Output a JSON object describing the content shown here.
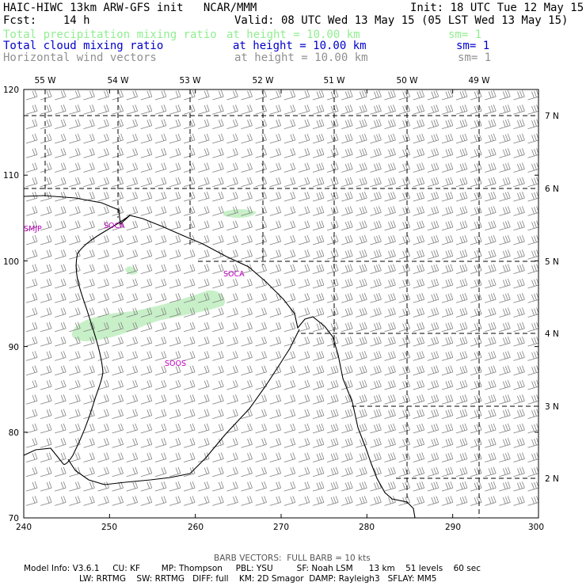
{
  "header": {
    "title_left": "HAIC-HIWC 13km ARW-GFS init   NCAR/MMM",
    "init": "Init: 18 UTC Tue 12 May 15",
    "fcst": "Fcst:    14 h",
    "valid": "Valid: 08 UTC Wed 13 May 15 (05 LST Wed 13 May 15)"
  },
  "fields": [
    {
      "name": "Total precipitation mixing ratio",
      "height": "at height = 10.00 km",
      "sm": "sm= 1",
      "color": "#90ee90"
    },
    {
      "name": "Total cloud mixing ratio",
      "height": "at height = 10.00 km",
      "sm": "sm= 1",
      "color": "#0000cd"
    },
    {
      "name": "Horizontal wind vectors",
      "height": "at height = 10.00 km",
      "sm": "sm= 1",
      "color": "#909090"
    }
  ],
  "map": {
    "top_labels": [
      "55 W",
      "54 W",
      "53 W",
      "52 W",
      "51 W",
      "50 W",
      "49 W"
    ],
    "right_labels": [
      "7 N",
      "6 N",
      "5 N",
      "4 N",
      "3 N",
      "2 N"
    ],
    "left_ticks": [
      "120",
      "110",
      "100",
      "90",
      "80",
      "70"
    ],
    "bottom_ticks": [
      "240",
      "250",
      "260",
      "270",
      "280",
      "290",
      "300"
    ],
    "stations": [
      "SMJP",
      "SOCA",
      "SOCA",
      "SOOS"
    ],
    "precip_color": "#c8f0c8",
    "barb_color": "#808080",
    "coast_color": "#000000",
    "station_color": "#c000c0"
  },
  "footer": {
    "barb_note": "BARB VECTORS:  FULL BARB = 10 kts",
    "line1": "Model Info: V3.6.1     CU: KF        MP: Thompson     PBL: YSU         SF: Noah LSM      13 km    51 levels    60 sec",
    "line2": "LW: RRTMG    SW: RRTMG   DIFF: full    KM: 2D Smagor  DAMP: Rayleigh3   SFLAY: MM5"
  }
}
